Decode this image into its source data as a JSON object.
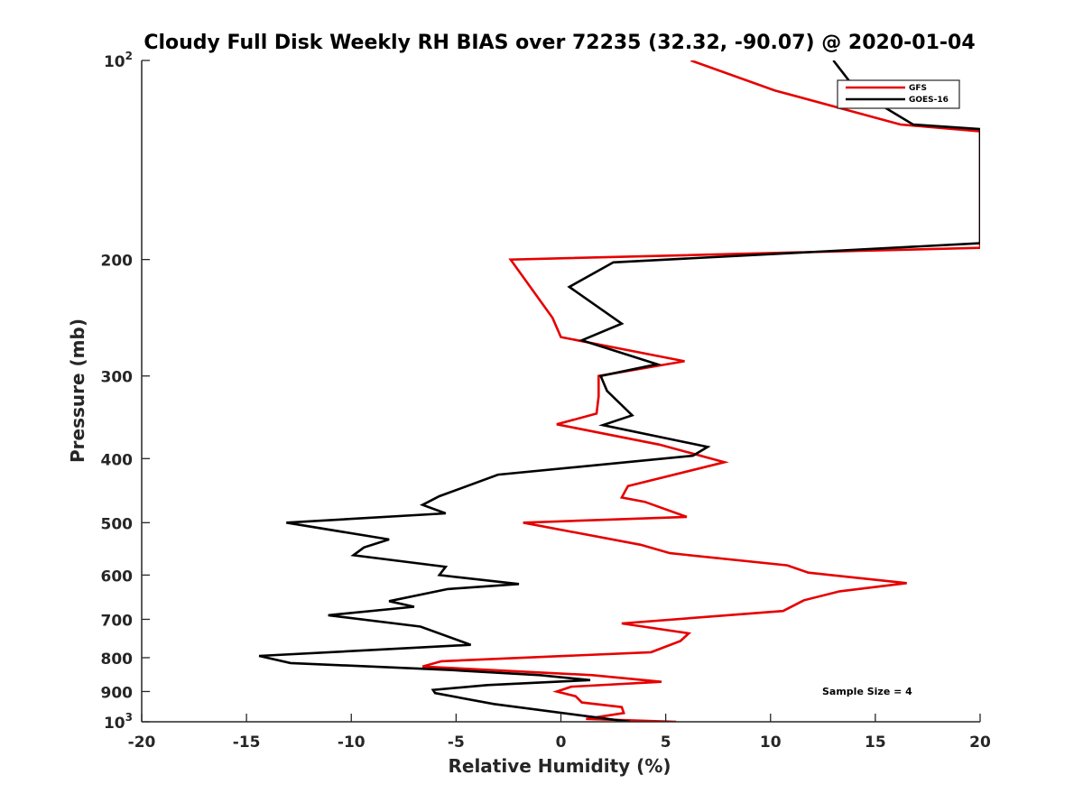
{
  "chart_data": {
    "type": "line",
    "title": "Cloudy Full Disk Weekly RH BIAS over 72235 (32.32, -90.07) @ 2020-01-04",
    "xlabel": "Relative Humidity (%)",
    "ylabel": "Pressure (mb)",
    "xlim": [
      -20,
      20
    ],
    "ylim": [
      100,
      1000
    ],
    "yscale": "log",
    "y_reversed": true,
    "xticks": [
      -20,
      -15,
      -10,
      -5,
      0,
      5,
      10,
      15,
      20
    ],
    "yticks": [
      {
        "value": 100,
        "label": "10",
        "sup": "2"
      },
      {
        "value": 200,
        "label": "200",
        "sup": ""
      },
      {
        "value": 300,
        "label": "300",
        "sup": ""
      },
      {
        "value": 400,
        "label": "400",
        "sup": ""
      },
      {
        "value": 500,
        "label": "500",
        "sup": ""
      },
      {
        "value": 600,
        "label": "600",
        "sup": ""
      },
      {
        "value": 700,
        "label": "700",
        "sup": ""
      },
      {
        "value": 800,
        "label": "800",
        "sup": ""
      },
      {
        "value": 900,
        "label": "900",
        "sup": ""
      },
      {
        "value": 1000,
        "label": "10",
        "sup": "3"
      }
    ],
    "grid": false,
    "legend_position": "top-right",
    "annotation": "Sample Size = 4",
    "series": [
      {
        "name": "GFS",
        "color": "#e60000",
        "points": [
          [
            5.5,
            1000
          ],
          [
            1.2,
            990
          ],
          [
            3.0,
            970
          ],
          [
            2.9,
            950
          ],
          [
            1.0,
            935
          ],
          [
            0.7,
            915
          ],
          [
            -0.2,
            900
          ],
          [
            0.5,
            885
          ],
          [
            4.8,
            870
          ],
          [
            1.5,
            850
          ],
          [
            -6.6,
            825
          ],
          [
            -5.7,
            810
          ],
          [
            4.3,
            785
          ],
          [
            5.7,
            755
          ],
          [
            6.1,
            735
          ],
          [
            2.9,
            710
          ],
          [
            10.6,
            680
          ],
          [
            11.6,
            655
          ],
          [
            13.3,
            635
          ],
          [
            16.5,
            617
          ],
          [
            11.8,
            595
          ],
          [
            10.8,
            580
          ],
          [
            5.2,
            556
          ],
          [
            3.8,
            540
          ],
          [
            -1.8,
            500
          ],
          [
            6.0,
            490
          ],
          [
            4.0,
            465
          ],
          [
            2.9,
            458
          ],
          [
            3.2,
            440
          ],
          [
            7.8,
            405
          ],
          [
            4.7,
            381
          ],
          [
            -0.2,
            355
          ],
          [
            1.7,
            342
          ],
          [
            1.8,
            322
          ],
          [
            1.8,
            300
          ],
          [
            5.9,
            285
          ],
          [
            0.0,
            262
          ],
          [
            -0.4,
            245
          ],
          [
            -2.4,
            200
          ],
          [
            20.0,
            192
          ],
          [
            20.0,
            128
          ],
          [
            16.2,
            125
          ],
          [
            10.2,
            111
          ],
          [
            6.2,
            100
          ]
        ]
      },
      {
        "name": "GOES-16",
        "color": "#000000",
        "points": [
          [
            3.3,
            1000
          ],
          [
            -3.2,
            940
          ],
          [
            -6.0,
            905
          ],
          [
            -6.1,
            895
          ],
          [
            -3.5,
            880
          ],
          [
            1.4,
            865
          ],
          [
            -1.0,
            850
          ],
          [
            -5.3,
            835
          ],
          [
            -12.9,
            815
          ],
          [
            -14.4,
            795
          ],
          [
            -4.3,
            765
          ],
          [
            -4.8,
            755
          ],
          [
            -6.7,
            718
          ],
          [
            -11.1,
            690
          ],
          [
            -7.0,
            670
          ],
          [
            -8.2,
            657
          ],
          [
            -5.4,
            630
          ],
          [
            -2.0,
            619
          ],
          [
            -5.8,
            600
          ],
          [
            -5.5,
            583
          ],
          [
            -9.9,
            560
          ],
          [
            -9.4,
            545
          ],
          [
            -8.2,
            530
          ],
          [
            -13.1,
            500
          ],
          [
            -5.5,
            484
          ],
          [
            -6.6,
            470
          ],
          [
            -5.8,
            456
          ],
          [
            -3.0,
            423
          ],
          [
            6.3,
            396
          ],
          [
            7.0,
            384
          ],
          [
            2.0,
            356
          ],
          [
            3.4,
            344
          ],
          [
            2.2,
            316
          ],
          [
            1.9,
            300
          ],
          [
            4.6,
            288
          ],
          [
            1.0,
            265
          ],
          [
            2.9,
            250
          ],
          [
            0.4,
            220
          ],
          [
            2.5,
            202
          ],
          [
            20.0,
            189
          ],
          [
            20.0,
            127
          ],
          [
            16.8,
            125
          ],
          [
            14.1,
            111
          ],
          [
            13.0,
            100
          ]
        ]
      }
    ]
  }
}
